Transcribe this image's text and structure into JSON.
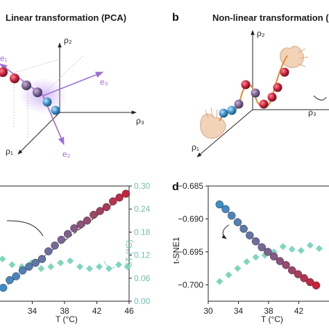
{
  "panel_a": {
    "title": "Linear transformation (PCA)",
    "axis_labels": {
      "rho2": "ρ₂",
      "rho3": "ρ₃",
      "rho1": "ρ₁"
    },
    "eigen_labels": {
      "e1": "e₁",
      "e2": "e₂",
      "e3": "e₃"
    }
  },
  "panel_b": {
    "letter": "b",
    "title": "Non-linear transformation (t-S",
    "axis_labels": {
      "rho2": "ρ₂",
      "rho3": "ρ₃",
      "rho1": "ρ₁"
    }
  },
  "panel_d": {
    "letter": "d"
  },
  "colors": {
    "red": "#c8213a",
    "purple": "#7b6391",
    "blue": "#3a8fc9",
    "teal": "#7fd6bd",
    "violet": "#9b6fd6",
    "orange": "#e08a2c"
  },
  "chart_data": [
    {
      "type": "scatter",
      "xlabel": "T (°C)",
      "ylabel_right": "δT (°C)",
      "xlim": [
        30,
        46
      ],
      "x_ticks": [
        "34",
        "38",
        "42",
        "46"
      ],
      "y_right_lim": [
        0.0,
        0.3
      ],
      "y_right_ticks": [
        "0.00",
        "0.06",
        "0.12",
        "0.18",
        "0.24",
        "0.30"
      ],
      "series": [
        {
          "x": [
            30.4,
            31.2,
            32.0,
            32.8,
            33.6,
            34.4,
            35.2,
            36.0,
            36.8,
            37.6,
            38.4,
            39.2,
            40.0,
            40.8,
            41.6,
            42.4,
            43.2,
            44.0,
            44.8,
            45.6
          ],
          "y_right": [
            0.035,
            0.055,
            0.065,
            0.08,
            0.09,
            0.1,
            0.11,
            0.13,
            0.145,
            0.16,
            0.175,
            0.19,
            0.2,
            0.21,
            0.225,
            0.235,
            0.245,
            0.26,
            0.27,
            0.28
          ]
        },
        {
          "x": [
            30.3,
            31.5,
            32.7,
            33.9,
            35.1,
            36.3,
            37.5,
            38.7,
            39.9,
            41.1,
            42.3,
            43.5,
            44.7,
            45.8
          ],
          "y_right": [
            0.11,
            0.095,
            0.09,
            0.1,
            0.085,
            0.09,
            0.1,
            0.105,
            0.09,
            0.085,
            0.09,
            0.085,
            0.095,
            0.09
          ]
        }
      ]
    },
    {
      "type": "scatter",
      "xlabel": "T (°C)",
      "ylabel": "t-SNE1",
      "xlim": [
        30,
        46
      ],
      "ylim": [
        -0.7025,
        -0.685
      ],
      "x_ticks": [
        "30",
        "34",
        "38",
        "42"
      ],
      "y_ticks": [
        "−0.685",
        "−0.690",
        "−0.695",
        "−0.700"
      ],
      "series": [
        {
          "x": [
            31.5,
            32.3,
            33.1,
            33.9,
            34.7,
            35.5,
            36.3,
            37.1,
            37.9,
            38.7,
            39.5,
            40.3,
            41.1,
            41.9,
            42.7,
            43.5,
            44.3
          ],
          "y": [
            -0.6878,
            -0.6885,
            -0.6895,
            -0.6905,
            -0.6915,
            -0.6925,
            -0.6934,
            -0.6943,
            -0.695,
            -0.6957,
            -0.6964,
            -0.697,
            -0.6978,
            -0.6984,
            -0.699,
            -0.6996,
            -0.7001
          ]
        },
        {
          "x": [
            31.5,
            32.7,
            33.9,
            35.1,
            36.3,
            37.5,
            38.7,
            39.9,
            41.1,
            42.3,
            43.5,
            44.7
          ],
          "y": [
            -0.6995,
            -0.6985,
            -0.6975,
            -0.6965,
            -0.6958,
            -0.6955,
            -0.695,
            -0.6942,
            -0.6946,
            -0.6948,
            -0.694,
            -0.6945
          ]
        }
      ]
    }
  ]
}
